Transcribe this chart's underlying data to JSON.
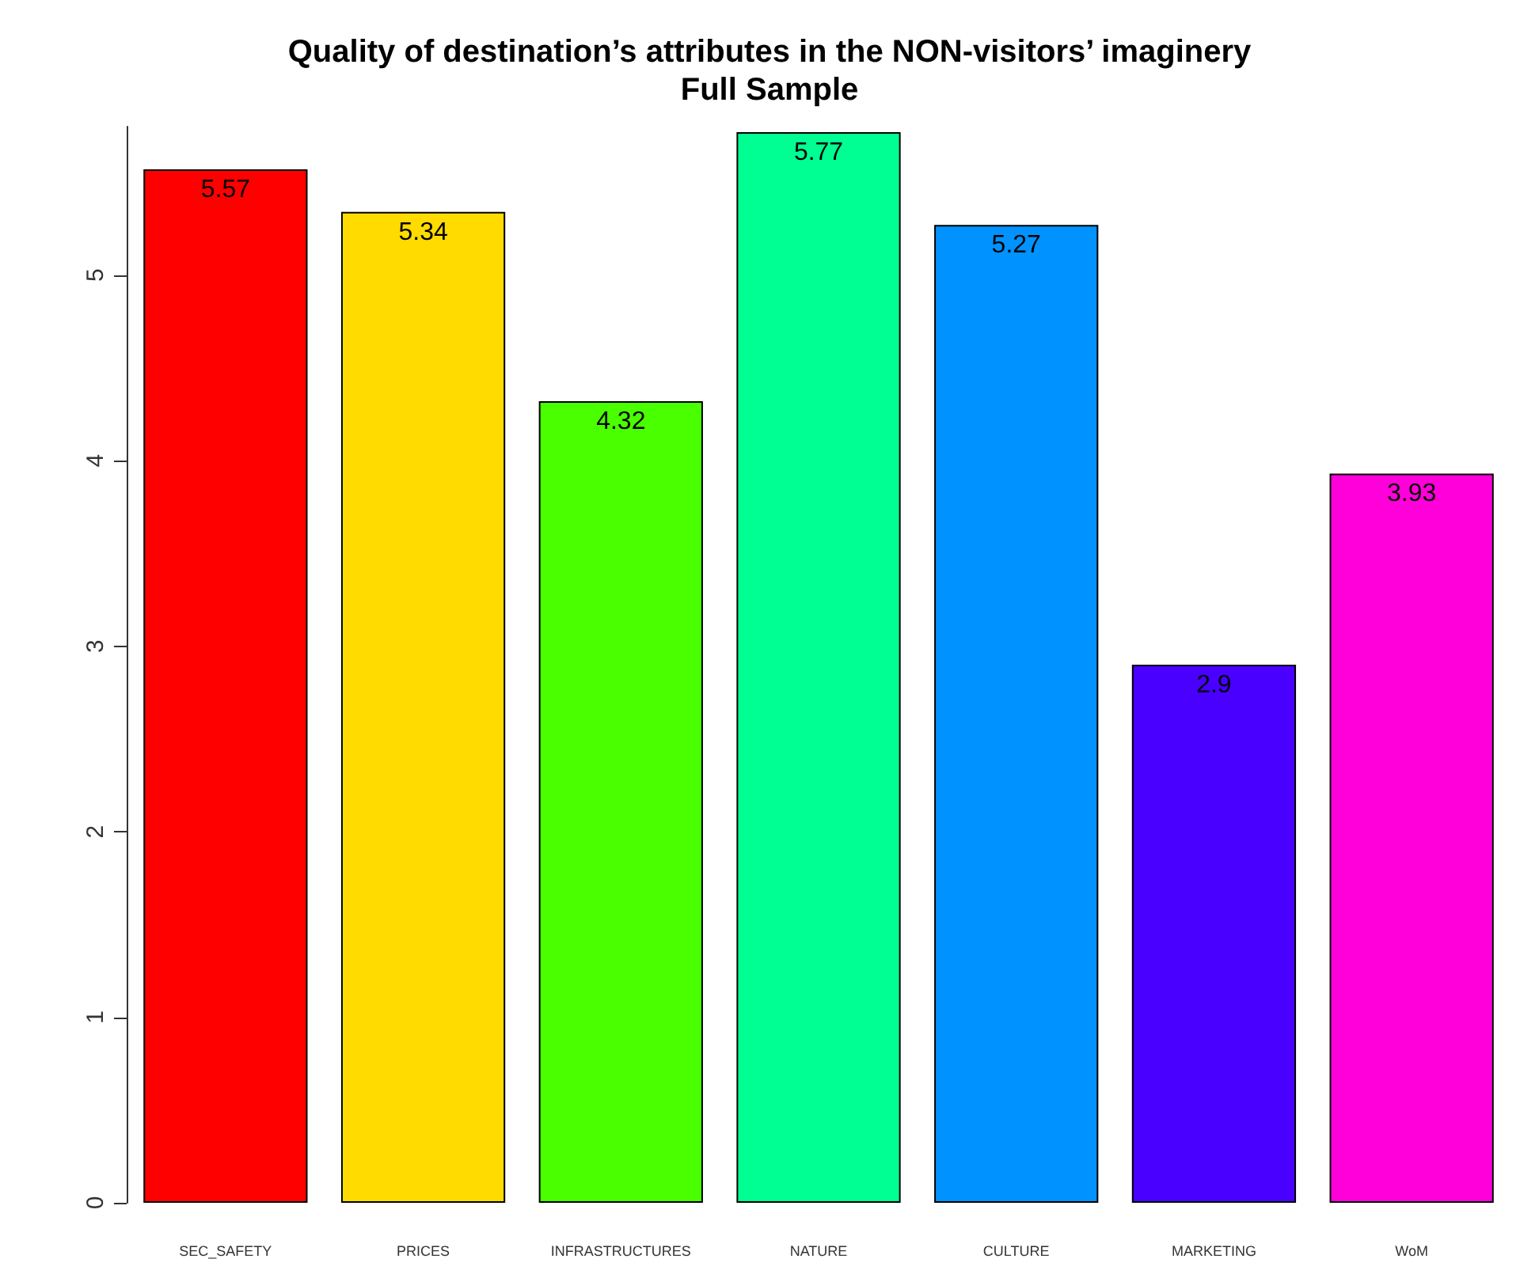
{
  "chart_data": {
    "type": "bar",
    "title": "Quality of destination’s attributes in the NON-visitors’ imaginery",
    "subtitle": "Full Sample",
    "categories": [
      "SEC_SAFETY",
      "PRICES",
      "INFRASTRUCTURES",
      "NATURE",
      "CULTURE",
      "MARKETING",
      "WoM"
    ],
    "values": [
      5.57,
      5.34,
      4.32,
      5.77,
      5.27,
      2.9,
      3.93
    ],
    "colors": [
      "#ff0000",
      "#ffdb00",
      "#49ff00",
      "#00ff92",
      "#0092ff",
      "#4900ff",
      "#ff00db"
    ],
    "ylim": [
      0,
      5.8
    ],
    "yticks": [
      0,
      1,
      2,
      3,
      4,
      5
    ],
    "data_labels": true
  }
}
